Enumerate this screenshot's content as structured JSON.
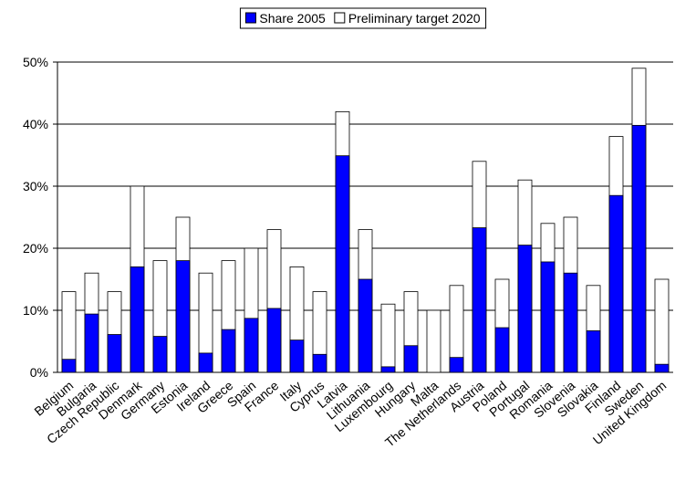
{
  "chart_data": {
    "type": "bar",
    "categories": [
      "Belgium",
      "Bulgaria",
      "Czech Republic",
      "Denmark",
      "Germany",
      "Estonia",
      "Ireland",
      "Greece",
      "Spain",
      "France",
      "Italy",
      "Cyprus",
      "Latvia",
      "Lithuania",
      "Luxembourg",
      "Hungary",
      "Malta",
      "The Netherlands",
      "Austria",
      "Poland",
      "Portugal",
      "Romania",
      "Slovenia",
      "Slovakia",
      "Finland",
      "Sweden",
      "United Kingdom"
    ],
    "series": [
      {
        "name": "Share 2005",
        "color": "#0000ff",
        "values": [
          2.1,
          9.4,
          6.1,
          17,
          5.8,
          18,
          3.1,
          6.9,
          8.7,
          10.3,
          5.2,
          2.9,
          34.9,
          15,
          0.9,
          4.3,
          0,
          2.4,
          23.3,
          7.2,
          20.5,
          17.8,
          16,
          6.7,
          28.5,
          39.8,
          1.3
        ]
      },
      {
        "name": "Preliminary target 2020",
        "color": "#ffffff",
        "values": [
          13,
          16,
          13,
          30,
          18,
          25,
          16,
          18,
          20,
          23,
          17,
          13,
          42,
          23,
          11,
          13,
          10,
          14,
          34,
          15,
          31,
          24,
          25,
          14,
          38,
          49,
          15
        ]
      }
    ],
    "ylim": [
      0,
      50
    ],
    "yticks": [
      {
        "value": 0,
        "label": "0%"
      },
      {
        "value": 10,
        "label": "10%"
      },
      {
        "value": 20,
        "label": "20%"
      },
      {
        "value": 30,
        "label": "30%"
      },
      {
        "value": 40,
        "label": "40%"
      },
      {
        "value": 50,
        "label": "50%"
      }
    ],
    "grid": true,
    "legend": "top"
  }
}
